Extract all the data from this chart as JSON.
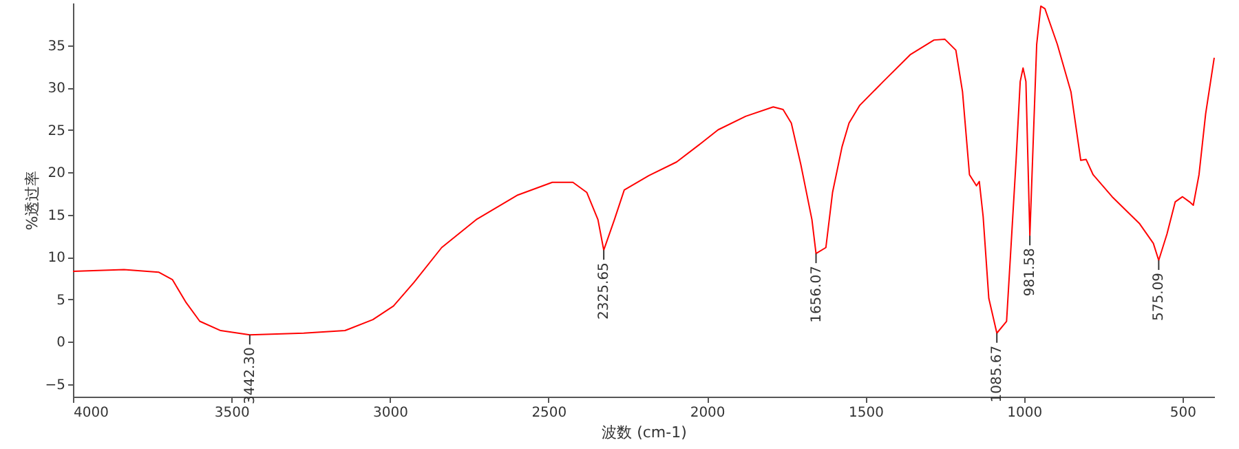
{
  "chart_data": {
    "type": "line",
    "xlabel": "波数 (cm-1)",
    "ylabel": "%透过率",
    "xlim": [
      4000,
      400
    ],
    "ylim": [
      -6.5,
      40
    ],
    "xticks": [
      4000,
      3500,
      3000,
      2500,
      2000,
      1500,
      1000,
      500
    ],
    "yticks": [
      -5,
      0,
      5,
      10,
      15,
      20,
      25,
      30,
      35
    ],
    "x": [
      4000,
      3839,
      3730,
      3686,
      3643,
      3600,
      3534,
      3442.3,
      3272,
      3142,
      3054,
      2989,
      2924,
      2837,
      2728,
      2597,
      2488,
      2423,
      2379,
      2344,
      2325.65,
      2292,
      2261,
      2183,
      2096,
      2026,
      1965,
      1878,
      1791,
      1760,
      1734,
      1704,
      1669,
      1656.07,
      1625,
      1604,
      1574,
      1552,
      1518,
      1444,
      1358,
      1284,
      1250,
      1215,
      1194,
      1172,
      1150,
      1141,
      1129,
      1111,
      1085.67,
      1055,
      1042,
      1025,
      1012,
      1003,
      994,
      981.58,
      960,
      947,
      934,
      895,
      852,
      821,
      804,
      782,
      722,
      635,
      592,
      575.09,
      549,
      523,
      500,
      478,
      466,
      448,
      427,
      400
    ],
    "series": [
      {
        "color": "#ff0000",
        "values": [
          8.3,
          8.5,
          8.2,
          7.3,
          4.6,
          2.4,
          1.3,
          0.8,
          1.0,
          1.3,
          2.6,
          4.2,
          7.0,
          11.1,
          14.4,
          17.3,
          18.8,
          18.8,
          17.6,
          14.4,
          10.8,
          14.4,
          17.9,
          19.6,
          21.2,
          23.2,
          25.0,
          26.6,
          27.7,
          27.4,
          25.8,
          20.9,
          14.4,
          10.4,
          11.1,
          17.6,
          23.0,
          25.8,
          27.9,
          30.7,
          33.9,
          35.6,
          35.7,
          34.4,
          29.5,
          19.7,
          18.4,
          18.9,
          14.8,
          5.1,
          1.0,
          2.4,
          10.6,
          21.4,
          30.7,
          32.3,
          30.7,
          12.5,
          35.1,
          39.6,
          39.3,
          35.1,
          29.5,
          21.4,
          21.5,
          19.7,
          17.1,
          13.9,
          11.6,
          9.6,
          12.7,
          16.5,
          17.1,
          16.5,
          16.1,
          19.7,
          26.9,
          33.5
        ]
      }
    ],
    "annotations": [
      {
        "text": "3442.30",
        "x": 3442.3,
        "y": 0.8
      },
      {
        "text": "2325.65",
        "x": 2325.65,
        "y": 10.8
      },
      {
        "text": "1656.07",
        "x": 1656.07,
        "y": 10.4
      },
      {
        "text": "1085.67",
        "x": 1085.67,
        "y": 1.0
      },
      {
        "text": "981.58",
        "x": 981.58,
        "y": 12.5
      },
      {
        "text": "575.09",
        "x": 575.09,
        "y": 9.6
      }
    ]
  }
}
